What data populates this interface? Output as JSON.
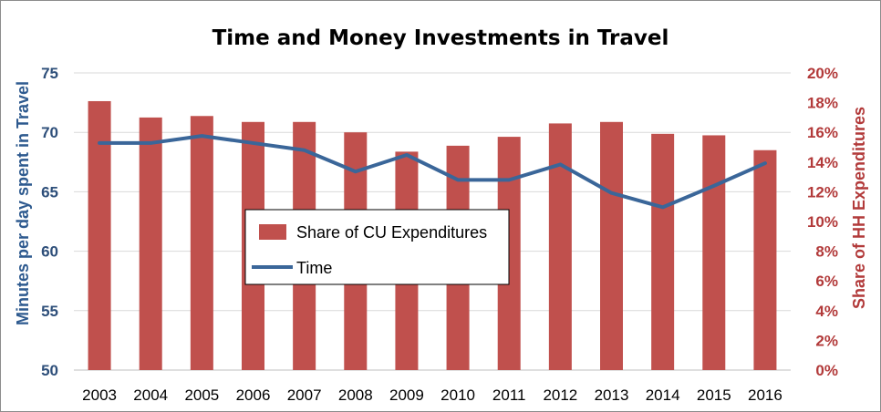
{
  "chart_data": {
    "type": "bar+line",
    "title": "Time and Money Investments in Travel",
    "categories": [
      "2003",
      "2004",
      "2005",
      "2006",
      "2007",
      "2008",
      "2009",
      "2010",
      "2011",
      "2012",
      "2013",
      "2014",
      "2015",
      "2016"
    ],
    "ylabel_left": "Minutes per day spent in Travel",
    "ylabel_right": "Share of HH Expenditures",
    "ylim_left": [
      50,
      75
    ],
    "yticks_left": [
      "50",
      "55",
      "60",
      "65",
      "70",
      "75"
    ],
    "ylim_right": [
      0,
      0.2
    ],
    "yticks_right": [
      "0%",
      "2%",
      "4%",
      "6%",
      "8%",
      "10%",
      "12%",
      "14%",
      "16%",
      "18%",
      "20%"
    ],
    "series": [
      {
        "name": "Share of CU Expenditures",
        "type": "bar",
        "axis": "right",
        "color": "#c0504d",
        "values": [
          0.181,
          0.17,
          0.171,
          0.167,
          0.167,
          0.16,
          0.147,
          0.151,
          0.157,
          0.166,
          0.167,
          0.159,
          0.158,
          0.148
        ]
      },
      {
        "name": "Time",
        "type": "line",
        "axis": "left",
        "color": "#3a6699",
        "values": [
          69.1,
          69.1,
          69.7,
          69.1,
          68.5,
          66.7,
          68.1,
          66.0,
          66.0,
          67.3,
          64.9,
          63.7,
          65.5,
          67.4
        ]
      }
    ],
    "grid": true,
    "legend": "center"
  }
}
